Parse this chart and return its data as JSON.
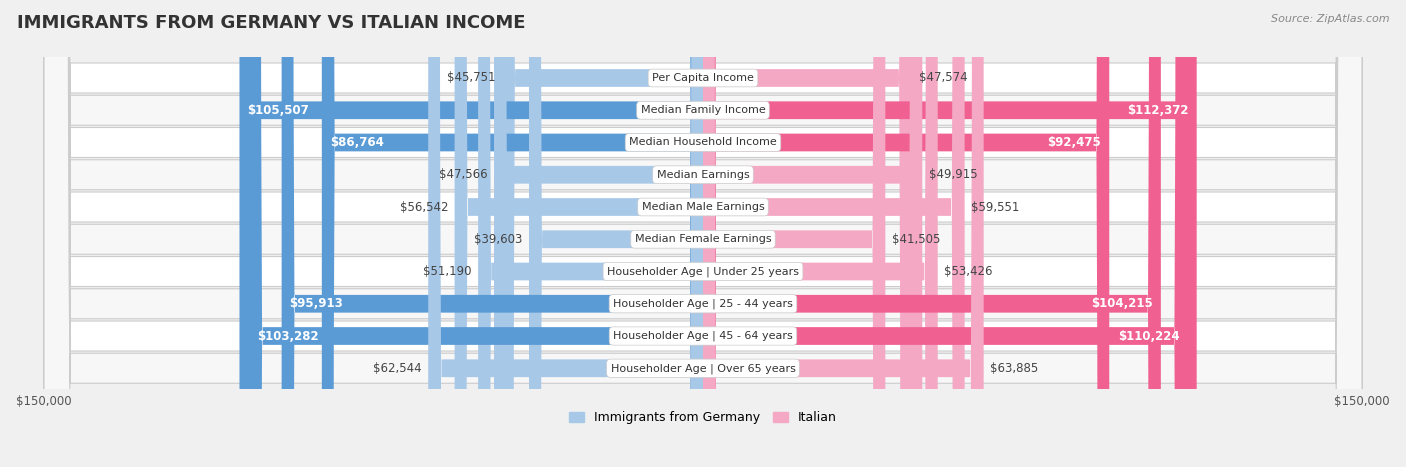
{
  "title": "IMMIGRANTS FROM GERMANY VS ITALIAN INCOME",
  "source": "Source: ZipAtlas.com",
  "categories": [
    "Per Capita Income",
    "Median Family Income",
    "Median Household Income",
    "Median Earnings",
    "Median Male Earnings",
    "Median Female Earnings",
    "Householder Age | Under 25 years",
    "Householder Age | 25 - 44 years",
    "Householder Age | 45 - 64 years",
    "Householder Age | Over 65 years"
  ],
  "germany_values": [
    45751,
    105507,
    86764,
    47566,
    56542,
    39603,
    51190,
    95913,
    103282,
    62544
  ],
  "italian_values": [
    47574,
    112372,
    92475,
    49915,
    59551,
    41505,
    53426,
    104215,
    110224,
    63885
  ],
  "germany_labels": [
    "$45,751",
    "$105,507",
    "$86,764",
    "$47,566",
    "$56,542",
    "$39,603",
    "$51,190",
    "$95,913",
    "$103,282",
    "$62,544"
  ],
  "italian_labels": [
    "$47,574",
    "$112,372",
    "$92,475",
    "$49,915",
    "$59,551",
    "$41,505",
    "$53,426",
    "$104,215",
    "$110,224",
    "$63,885"
  ],
  "germany_color_light": "#a8c8e8",
  "germany_color_dark": "#5b9bd5",
  "italian_color_light": "#f4a8c4",
  "italian_color_dark": "#f06090",
  "dark_threshold": 70000,
  "max_value": 150000,
  "bar_height": 0.55,
  "background_color": "#f0f0f0",
  "row_bg_even": "#ffffff",
  "row_bg_odd": "#f7f7f7",
  "title_fontsize": 13,
  "label_fontsize": 8.5,
  "cat_fontsize": 8.0,
  "legend_fontsize": 9,
  "source_fontsize": 8,
  "value_label_dark_color": "#ffffff",
  "value_label_light_color": "#444444"
}
